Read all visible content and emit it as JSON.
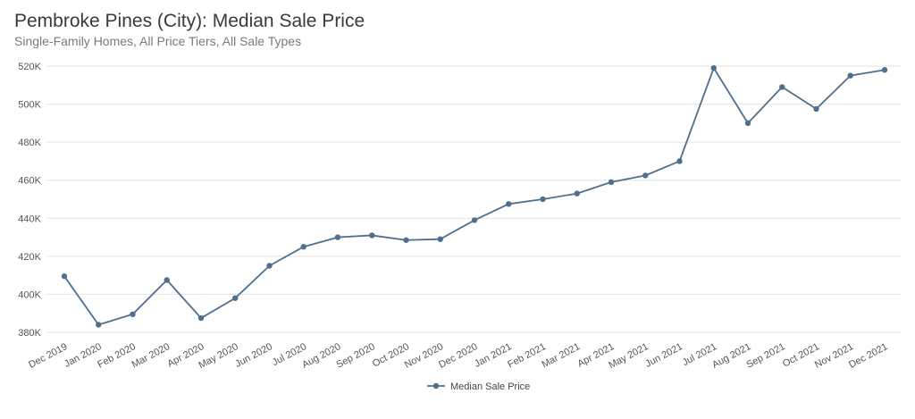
{
  "header": {
    "title": "Pembroke Pines (City): Median Sale Price",
    "subtitle": "Single-Family Homes, All Price Tiers, All Sale Types"
  },
  "colors": {
    "series": "#4f6f8c",
    "grid": "#e3e3e3",
    "axis": "#bdbdbd"
  },
  "chart_data": {
    "type": "line",
    "title": "Pembroke Pines (City): Median Sale Price",
    "subtitle": "Single-Family Homes, All Price Tiers, All Sale Types",
    "xlabel": "",
    "ylabel": "",
    "ylim": [
      380000,
      520000
    ],
    "yticks": [
      380000,
      400000,
      420000,
      440000,
      460000,
      480000,
      500000,
      520000
    ],
    "ytick_labels": [
      "380K",
      "400K",
      "420K",
      "440K",
      "460K",
      "480K",
      "500K",
      "520K"
    ],
    "grid": true,
    "legend": "bottom-center",
    "categories": [
      "Dec 2019",
      "Jan 2020",
      "Feb 2020",
      "Mar 2020",
      "Apr 2020",
      "May 2020",
      "Jun 2020",
      "Jul 2020",
      "Aug 2020",
      "Sep 2020",
      "Oct 2020",
      "Nov 2020",
      "Dec 2020",
      "Jan 2021",
      "Feb 2021",
      "Mar 2021",
      "Apr 2021",
      "May 2021",
      "Jun 2021",
      "Jul 2021",
      "Aug 2021",
      "Sep 2021",
      "Oct 2021",
      "Nov 2021",
      "Dec 2021"
    ],
    "series": [
      {
        "name": "Median Sale Price",
        "values": [
          409500,
          384000,
          389500,
          407500,
          387500,
          398000,
          415000,
          425000,
          430000,
          431000,
          428500,
          429000,
          439000,
          447500,
          450000,
          453000,
          459000,
          462500,
          470000,
          519000,
          490000,
          509000,
          497500,
          515000,
          518000
        ]
      }
    ]
  }
}
